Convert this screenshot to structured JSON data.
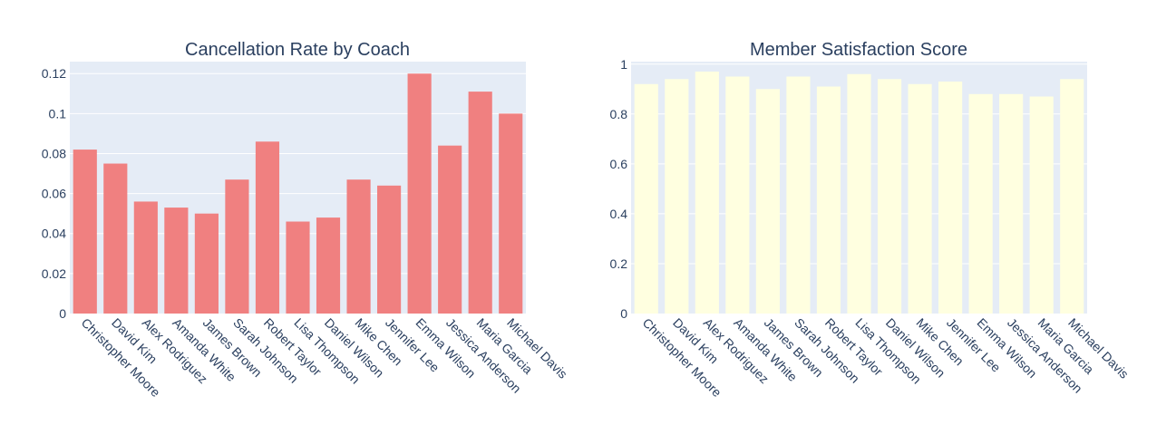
{
  "chart_data": [
    {
      "type": "bar",
      "title": "Cancellation Rate by Coach",
      "xlabel": "",
      "ylabel": "",
      "categories": [
        "Christopher Moore",
        "David Kim",
        "Alex Rodriguez",
        "Amanda White",
        "James Brown",
        "Sarah Johnson",
        "Robert Taylor",
        "Lisa Thompson",
        "Daniel Wilson",
        "Mike Chen",
        "Jennifer Lee",
        "Emma Wilson",
        "Jessica Anderson",
        "Maria Garcia",
        "Michael Davis"
      ],
      "values": [
        0.082,
        0.075,
        0.056,
        0.053,
        0.05,
        0.067,
        0.086,
        0.046,
        0.048,
        0.067,
        0.064,
        0.12,
        0.084,
        0.111,
        0.1
      ],
      "ylim": [
        0,
        0.126
      ],
      "yticks": [
        0,
        0.02,
        0.04,
        0.06,
        0.08,
        0.1,
        0.12
      ],
      "ytick_labels": [
        "0",
        "0.02",
        "0.04",
        "0.06",
        "0.08",
        "0.1",
        "0.12"
      ],
      "bar_color": "#f08080",
      "grid": true
    },
    {
      "type": "bar",
      "title": "Member Satisfaction Score",
      "xlabel": "",
      "ylabel": "",
      "categories": [
        "Christopher Moore",
        "David Kim",
        "Alex Rodriguez",
        "Amanda White",
        "James Brown",
        "Sarah Johnson",
        "Robert Taylor",
        "Lisa Thompson",
        "Daniel Wilson",
        "Mike Chen",
        "Jennifer Lee",
        "Emma Wilson",
        "Jessica Anderson",
        "Maria Garcia",
        "Michael Davis"
      ],
      "values": [
        0.92,
        0.94,
        0.97,
        0.95,
        0.9,
        0.95,
        0.91,
        0.96,
        0.94,
        0.92,
        0.93,
        0.88,
        0.88,
        0.87,
        0.94
      ],
      "ylim": [
        0,
        1.01
      ],
      "yticks": [
        0,
        0.2,
        0.4,
        0.6,
        0.8,
        1
      ],
      "ytick_labels": [
        "0",
        "0.2",
        "0.4",
        "0.6",
        "0.8",
        "1"
      ],
      "bar_color": "#ffffe0",
      "grid": true
    }
  ]
}
